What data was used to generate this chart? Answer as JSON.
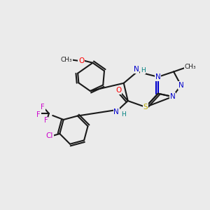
{
  "bg_color": "#ebebeb",
  "bond_color": "#1a1a1a",
  "atom_colors": {
    "N": "#0000cc",
    "O": "#ff0000",
    "S": "#bbaa00",
    "Cl": "#cc00cc",
    "F": "#cc00cc",
    "H": "#008080",
    "C": "#1a1a1a"
  }
}
